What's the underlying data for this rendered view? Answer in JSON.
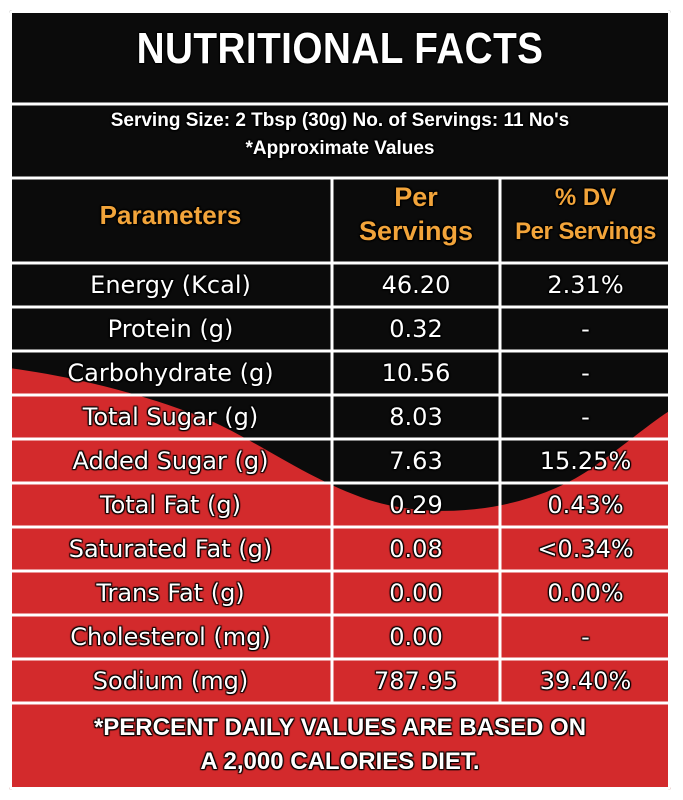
{
  "title": "NUTRITIONAL FACTS",
  "serving_line": "Serving Size: 2 Tbsp (30g) No. of Servings: 11 No's",
  "approx_line": "*Approximate Values",
  "headers": {
    "parameters": "Parameters",
    "per_servings_1": "Per",
    "per_servings_2": "Servings",
    "dv_1": "% DV",
    "dv_2": "Per Servings"
  },
  "rows": [
    {
      "param": "Energy (Kcal)",
      "per": "46.20",
      "dv": "2.31%"
    },
    {
      "param": "Protein (g)",
      "per": "0.32",
      "dv": "-"
    },
    {
      "param": "Carbohydrate (g)",
      "per": "10.56",
      "dv": "-"
    },
    {
      "param": "Total Sugar (g)",
      "per": "8.03",
      "dv": "-"
    },
    {
      "param": "Added Sugar (g)",
      "per": "7.63",
      "dv": "15.25%"
    },
    {
      "param": "Total Fat (g)",
      "per": "0.29",
      "dv": "0.43%"
    },
    {
      "param": "Saturated Fat (g)",
      "per": "0.08",
      "dv": "<0.34%"
    },
    {
      "param": "Trans Fat (g)",
      "per": "0.00",
      "dv": "0.00%"
    },
    {
      "param": "Cholesterol (mg)",
      "per": "0.00",
      "dv": "-"
    },
    {
      "param": "Sodium (mg)",
      "per": "787.95",
      "dv": "39.40%"
    }
  ],
  "footnote_1": "*PERCENT DAILY VALUES ARE BASED ON",
  "footnote_2": "A 2,000 CALORIES DIET.",
  "colors": {
    "black": "#0b0b0b",
    "red": "#d32a2c",
    "orange": "#f2a43a",
    "white": "#ffffff"
  }
}
